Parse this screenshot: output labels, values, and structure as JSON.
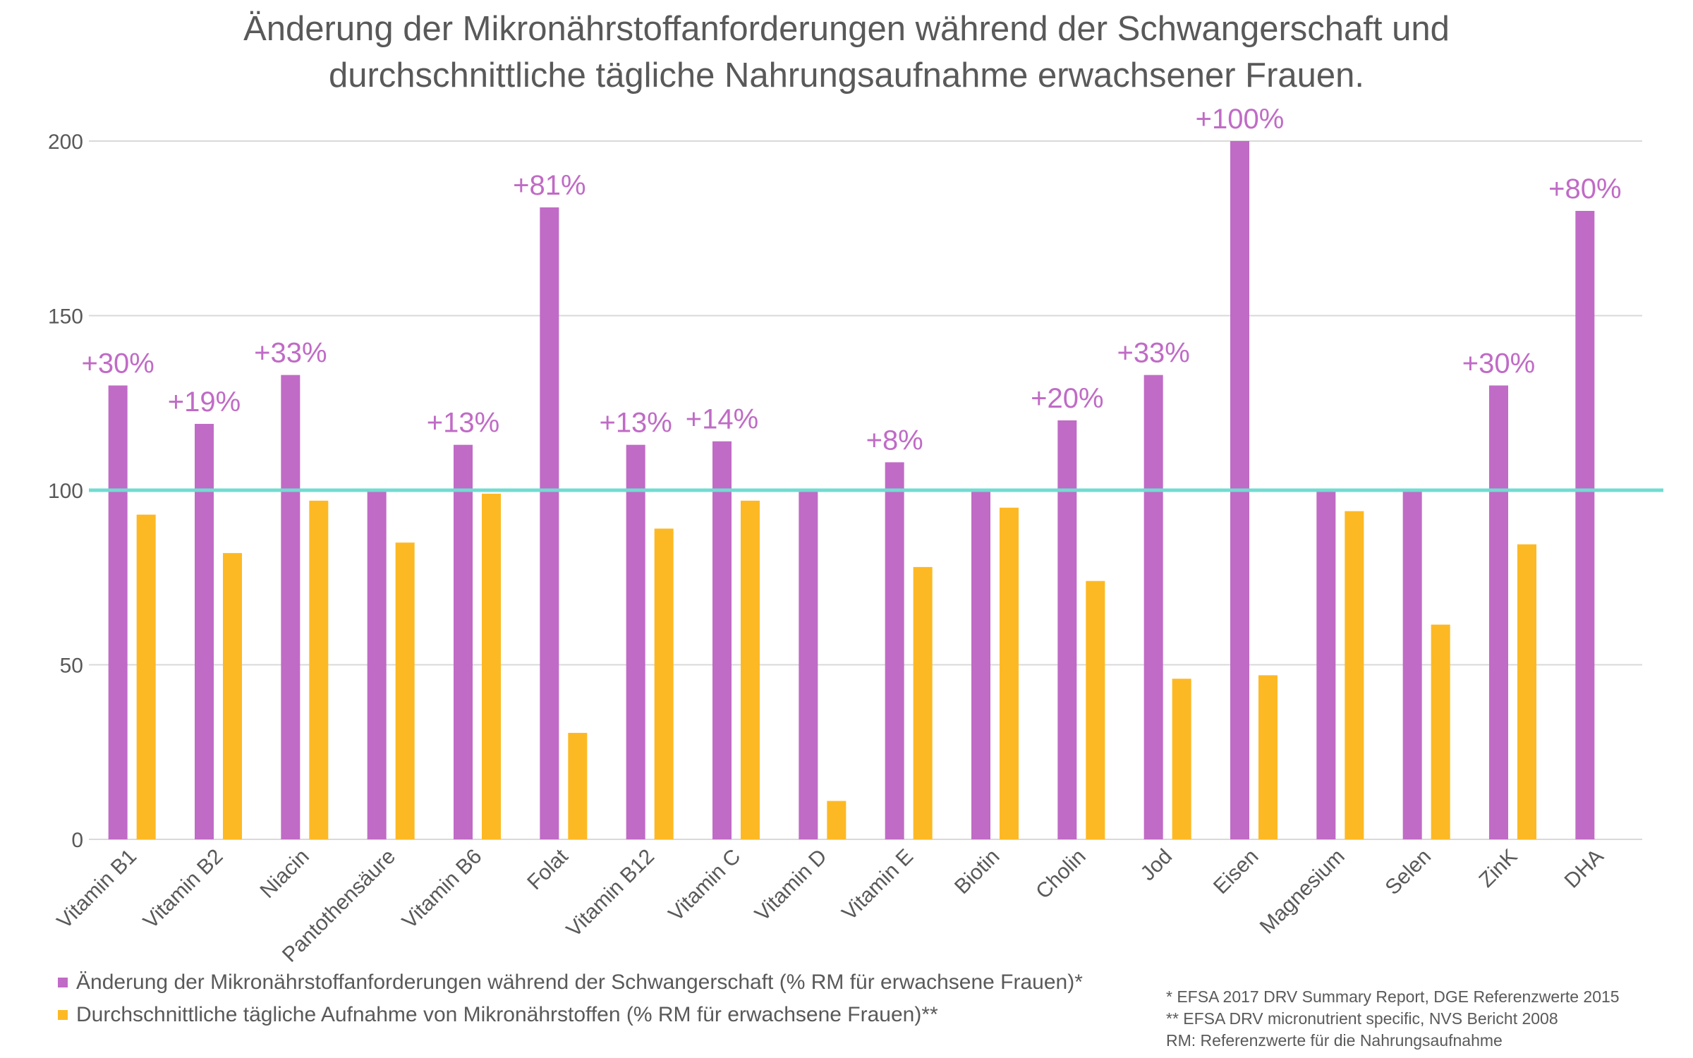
{
  "chart_data": {
    "type": "bar",
    "title_lines": [
      "Änderung der Mikronährstoffanforderungen während der Schwangerschaft und",
      "durchschnittliche tägliche Nahrungsaufnahme erwachsener Frauen."
    ],
    "categories": [
      "Vitamin B1",
      "Vitamin B2",
      "Niacin",
      "Pantothensäure",
      "Vitamin B6",
      "Folat",
      "Vitamin B12",
      "Vitamin C",
      "Vitamin D",
      "Vitamin E",
      "Biotin",
      "Cholin",
      "Jod",
      "Eisen",
      "Magnesium",
      "Selen",
      "ZinK",
      "DHA"
    ],
    "series": [
      {
        "name": "Änderung der Mikronährstoffanforderungen während der Schwangerschaft (% RM für erwachsene Frauen)*",
        "color": "#C06BC6",
        "values": [
          130,
          119,
          133,
          100,
          113,
          181,
          113,
          114,
          100,
          108,
          100,
          120,
          133,
          200,
          100,
          100,
          130,
          180
        ],
        "data_labels": [
          "+30%",
          "+19%",
          "+33%",
          "",
          "+13%",
          "+81%",
          "+13%",
          "+14%",
          "",
          "+8%",
          "",
          "+20%",
          "+33%",
          "+100%",
          "",
          "",
          "+30%",
          "+80%"
        ]
      },
      {
        "name": "Durchschnittliche tägliche Aufnahme von Mikronährstoffen (% RM für erwachsene Frauen)**",
        "color": "#FDB924",
        "values": [
          93,
          82,
          97,
          85,
          99,
          30.5,
          89,
          97,
          11,
          78,
          95,
          74,
          46,
          47,
          94,
          61.5,
          84.5,
          null
        ]
      }
    ],
    "reference_line": {
      "value": 100,
      "color": "#70DCD0"
    },
    "yticks": [
      "0",
      "50",
      "100",
      "150",
      "200"
    ],
    "ylim": [
      0,
      200
    ],
    "grid": true,
    "legend_position": "bottom-left",
    "label_color": "#C06BC6",
    "text_color": "#595959",
    "grid_color": "#D9D9D9"
  },
  "footnotes": [
    "* EFSA 2017 DRV Summary Report, DGE Referenzwerte 2015",
    "** EFSA DRV micronutrient specific, NVS Bericht 2008",
    "RM: Referenzwerte für die Nahrungsaufnahme"
  ]
}
